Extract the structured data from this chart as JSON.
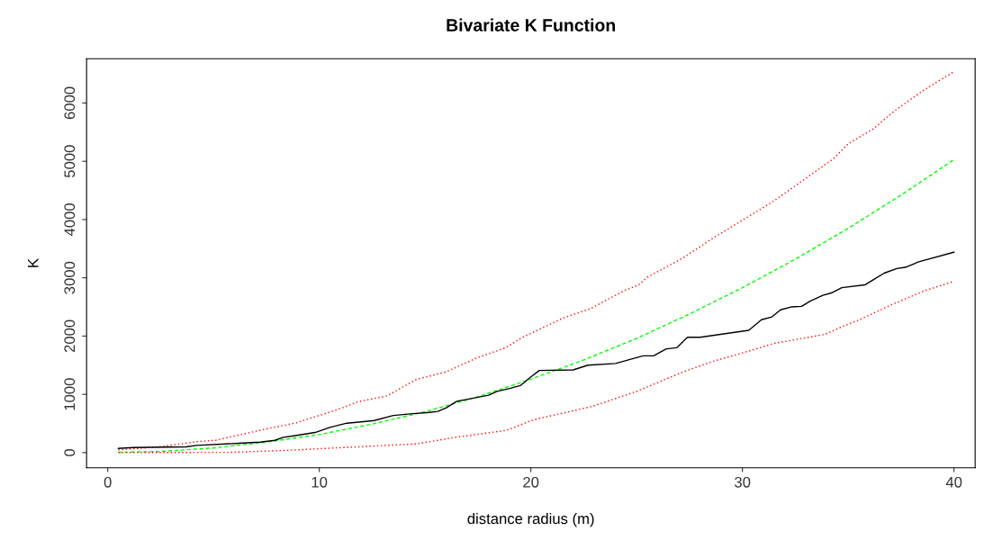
{
  "chart_data": {
    "type": "line",
    "title": "Bivariate K Function",
    "xlabel": "distance radius (m)",
    "ylabel": "K",
    "xlim": [
      -1.0,
      41.0
    ],
    "ylim": [
      -260,
      6760
    ],
    "xticks": [
      0,
      10,
      20,
      30,
      40
    ],
    "yticks": [
      0,
      1000,
      2000,
      3000,
      4000,
      5000,
      6000
    ],
    "grid": false,
    "legend": false,
    "marker": "none",
    "series": [
      {
        "color": "#ff0000",
        "line_style": "dotted",
        "x": [
          0.5,
          2.4,
          4.25,
          5.1,
          7.5,
          8.9,
          10.9,
          11.8,
          13.2,
          14.6,
          16.0,
          17.4,
          18.8,
          19.6,
          21.55,
          22.8,
          24.4,
          25.1,
          25.5,
          27.2,
          28.6,
          30.35,
          31.5,
          32.9,
          34.3,
          35.0,
          36.2,
          37.2,
          38.6,
          40.0
        ],
        "values": [
          46,
          98,
          190,
          211,
          407,
          510,
          742,
          870,
          974,
          1257,
          1386,
          1618,
          1800,
          1978,
          2313,
          2468,
          2777,
          2880,
          3009,
          3343,
          3679,
          4065,
          4323,
          4683,
          5043,
          5301,
          5560,
          5869,
          6229,
          6540
        ]
      },
      {
        "color": "#00ff00",
        "line_style": "dashed",
        "x": [
          0.5,
          2.5,
          5.0,
          7.5,
          10.0,
          12.5,
          15.0,
          17.5,
          20.0,
          22.5,
          25.0,
          27.5,
          30.0,
          32.5,
          35.0,
          37.5,
          40.0
        ],
        "values": [
          5,
          20,
          80,
          180,
          310,
          490,
          700,
          960,
          1260,
          1590,
          1960,
          2380,
          2830,
          3320,
          3850,
          4420,
          5030
        ]
      },
      {
        "color": "#000000",
        "line_style": "solid",
        "x": [
          0.5,
          1.2,
          3.7,
          4.2,
          6.2,
          7.2,
          7.9,
          8.3,
          8.8,
          9.8,
          10.5,
          11.3,
          12.2,
          12.6,
          13.5,
          14.3,
          15.2,
          15.6,
          16.0,
          16.5,
          16.9,
          18.0,
          18.4,
          19.0,
          19.5,
          20.0,
          20.4,
          22.0,
          22.7,
          24.0,
          25.3,
          25.8,
          26.4,
          26.9,
          27.4,
          28.0,
          30.3,
          30.9,
          31.4,
          31.8,
          32.3,
          32.8,
          33.2,
          33.8,
          34.2,
          34.7,
          35.8,
          36.2,
          36.7,
          37.3,
          37.7,
          38.3,
          40.0
        ],
        "values": [
          72,
          88,
          98,
          124,
          160,
          180,
          211,
          262,
          288,
          345,
          433,
          505,
          536,
          551,
          638,
          665,
          690,
          706,
          768,
          881,
          907,
          984,
          1051,
          1100,
          1150,
          1300,
          1410,
          1420,
          1500,
          1530,
          1660,
          1660,
          1780,
          1800,
          1980,
          1980,
          2100,
          2280,
          2330,
          2450,
          2500,
          2510,
          2600,
          2700,
          2740,
          2830,
          2880,
          2970,
          3080,
          3160,
          3180,
          3270,
          3440
        ]
      },
      {
        "color": "#ff0000",
        "line_style": "dotted",
        "x": [
          0.5,
          5.8,
          8.3,
          11.75,
          14.6,
          16.45,
          18.85,
          20.1,
          22.9,
          25.0,
          27.2,
          28.6,
          30.35,
          31.5,
          33.9,
          34.7,
          35.4,
          37.1,
          38.6,
          40.0
        ],
        "values": [
          0,
          5,
          36,
          98,
          150,
          263,
          382,
          561,
          793,
          1051,
          1386,
          1566,
          1747,
          1875,
          2029,
          2159,
          2261,
          2546,
          2777,
          2940
        ]
      }
    ]
  }
}
